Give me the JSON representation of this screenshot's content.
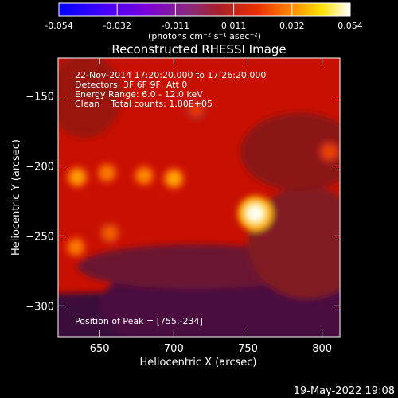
{
  "chart_data": {
    "type": "heatmap",
    "title": "Reconstructed RHESSI Image",
    "xlabel": "Heliocentric X (arcsec)",
    "ylabel": "Heliocentric Y (arcsec)",
    "xlim": [
      622,
      812
    ],
    "ylim": [
      -322,
      -123
    ],
    "x_ticks": [
      650,
      700,
      750,
      800
    ],
    "y_ticks": [
      -150,
      -200,
      -250,
      -300
    ],
    "colorbar": {
      "label": "(photons cm⁻² s⁻¹ asec⁻²)",
      "range": [
        -0.054,
        0.054
      ],
      "ticks": [
        "-0.054",
        "-0.032",
        "-0.011",
        "0.011",
        "0.032",
        "0.054"
      ],
      "colormap": "hot (black-blue-purple-red-orange-yellow-white)"
    },
    "info_lines": [
      "22-Nov-2014 17:20:20.000 to 17:26:20.000",
      "Detectors: 3F 6F 9F, Att 0",
      "Energy Range: 6.0 - 12.0 keV",
      "Clean    Total counts: 1.80E+05"
    ],
    "peak_label": "Position of Peak = [755,-234]",
    "peak": {
      "x": 755,
      "y": -234,
      "value": 0.054
    },
    "features": [
      {
        "x": 755,
        "y": -234,
        "value": 0.05
      },
      {
        "x": 700,
        "y": -209,
        "value": 0.036
      },
      {
        "x": 635,
        "y": -208,
        "value": 0.035
      },
      {
        "x": 680,
        "y": -207,
        "value": 0.032
      },
      {
        "x": 655,
        "y": -205,
        "value": 0.03
      },
      {
        "x": 634,
        "y": -258,
        "value": 0.03
      },
      {
        "x": 657,
        "y": -248,
        "value": 0.026
      },
      {
        "x": 805,
        "y": -190,
        "value": 0.022
      },
      {
        "x": 715,
        "y": -160,
        "value": 0.02
      }
    ],
    "background_value": 0.019
  },
  "footer": {
    "timestamp": "19-May-2022 19:08"
  }
}
